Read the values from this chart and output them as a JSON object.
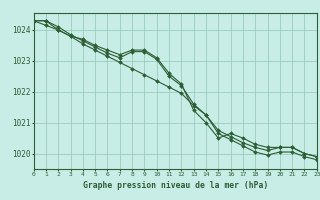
{
  "title": "Graphe pression niveau de la mer (hPa)",
  "background_color": "#c8ece6",
  "grid_color": "#99ccbb",
  "line_color": "#2d5e35",
  "hours": [
    0,
    1,
    2,
    3,
    4,
    5,
    6,
    7,
    8,
    9,
    10,
    11,
    12,
    13,
    14,
    15,
    16,
    17,
    18,
    19,
    20,
    21,
    22,
    23
  ],
  "line1": [
    1024.3,
    1024.3,
    1024.1,
    1023.85,
    1023.65,
    1023.45,
    1023.25,
    1023.1,
    1023.3,
    1023.3,
    1023.05,
    1022.5,
    1022.2,
    1021.6,
    1021.25,
    1020.75,
    1020.55,
    1020.35,
    1020.2,
    1020.1,
    1020.2,
    1020.2,
    1020.0,
    1019.9
  ],
  "line2": [
    1024.3,
    1024.15,
    1024.0,
    1023.8,
    1023.7,
    1023.5,
    1023.35,
    1023.2,
    1023.35,
    1023.35,
    1023.1,
    1022.6,
    1022.25,
    1021.4,
    1021.0,
    1020.5,
    1020.65,
    1020.5,
    1020.3,
    1020.2,
    1020.2,
    1020.2,
    1020.0,
    1019.9
  ],
  "line3": [
    1024.3,
    1024.3,
    1024.0,
    1023.8,
    1023.55,
    1023.35,
    1023.15,
    1022.95,
    1022.75,
    1022.55,
    1022.35,
    1022.15,
    1021.95,
    1021.55,
    1021.25,
    1020.65,
    1020.45,
    1020.25,
    1020.05,
    1019.95,
    1020.05,
    1020.05,
    1019.9,
    1019.8
  ],
  "ylim": [
    1019.5,
    1024.55
  ],
  "yticks": [
    1020,
    1021,
    1022,
    1023,
    1024
  ],
  "xlim": [
    0,
    23
  ]
}
